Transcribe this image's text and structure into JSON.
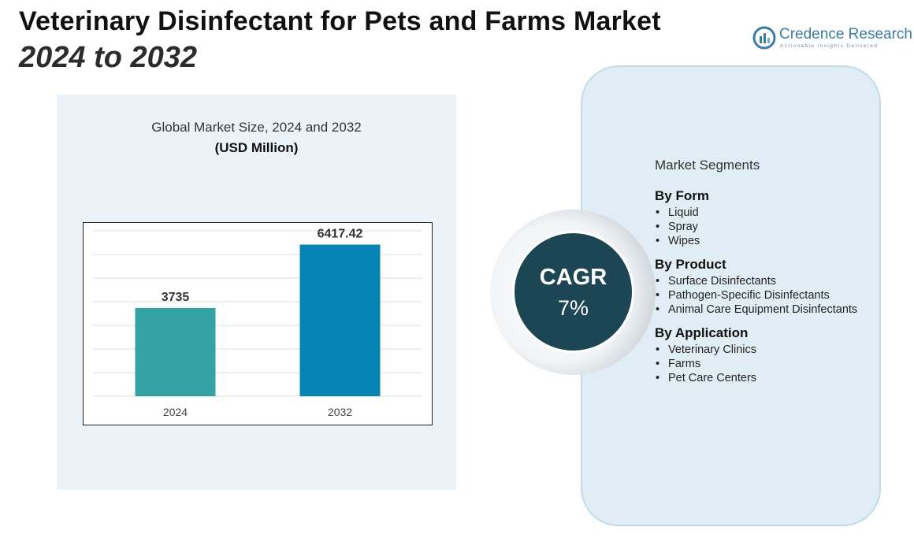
{
  "header": {
    "title_line1": "Veterinary Disinfectant for Pets and Farms Market",
    "title_line2": "2024 to 2032"
  },
  "logo": {
    "name": "Credence Research",
    "tagline": "Actionable Insights Delivered",
    "color": "#3a7ca5"
  },
  "chart_data": {
    "type": "bar",
    "title": "Global Market Size, 2024 and 2032",
    "unit_label": "(USD Million)",
    "categories": [
      "2024",
      "2032"
    ],
    "values": [
      3735,
      6417.42
    ],
    "value_labels": [
      "3735",
      "6417.42"
    ],
    "bar_colors": [
      "#33a3a3",
      "#0783b4"
    ],
    "ylim": [
      0,
      7000
    ],
    "grid": true,
    "xlabel": "",
    "ylabel": ""
  },
  "cagr": {
    "label": "CAGR",
    "value": "7%"
  },
  "segments": {
    "heading": "Market Segments",
    "groups": [
      {
        "title": "By Form",
        "items": [
          "Liquid",
          "Spray",
          "Wipes"
        ]
      },
      {
        "title": "By Product",
        "items": [
          "Surface Disinfectants",
          "Pathogen-Specific Disinfectants",
          "Animal Care Equipment Disinfectants"
        ]
      },
      {
        "title": "By Application",
        "items": [
          "Veterinary Clinics",
          "Farms",
          "Pet Care Centers"
        ]
      }
    ]
  }
}
